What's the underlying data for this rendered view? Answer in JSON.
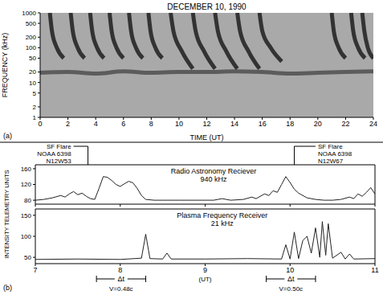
{
  "chart_data": [
    {
      "type": "line",
      "panel_label": "(a)",
      "title": "DECEMBER 10, 1990",
      "x_label": "TIME (UT)",
      "y_label": "FREQUENCY (kHz)",
      "log": "y",
      "xlim": [
        0,
        24
      ],
      "xticks": [
        0,
        2,
        4,
        6,
        8,
        10,
        12,
        14,
        16,
        18,
        20,
        22,
        24
      ],
      "ylim": [
        1,
        1000
      ],
      "yticks": [
        1,
        2,
        5,
        10,
        20,
        50,
        100,
        200,
        500,
        1000
      ],
      "series": [
        {
          "color": "#5c5c5c",
          "x": [
            0,
            2,
            4,
            6,
            8,
            10,
            12,
            14,
            16,
            18,
            20,
            22,
            24
          ],
          "values": [
            19,
            20,
            18,
            21,
            19,
            20,
            20,
            21,
            20,
            18,
            19,
            20,
            21
          ]
        },
        {
          "color": "#333333",
          "x": [
            0.7,
            0.85,
            1.2,
            1.7
          ],
          "values": [
            1000,
            300,
            100,
            50
          ]
        },
        {
          "color": "#333333",
          "x": [
            2.2,
            2.35,
            2.7,
            3.2
          ],
          "values": [
            1000,
            300,
            100,
            50
          ]
        },
        {
          "color": "#333333",
          "x": [
            3.6,
            3.75,
            4.1,
            4.6
          ],
          "values": [
            1000,
            300,
            100,
            50
          ]
        },
        {
          "color": "#333333",
          "x": [
            5.0,
            5.15,
            5.5,
            6.0
          ],
          "values": [
            1000,
            300,
            100,
            50
          ]
        },
        {
          "color": "#333333",
          "x": [
            6.4,
            6.55,
            6.9,
            7.4
          ],
          "values": [
            1000,
            300,
            100,
            50
          ]
        },
        {
          "color": "#333333",
          "x": [
            7.8,
            7.95,
            8.3,
            8.8
          ],
          "values": [
            1000,
            300,
            100,
            50
          ]
        },
        {
          "color": "#333333",
          "x": [
            9.4,
            9.6,
            10.2,
            11.0
          ],
          "values": [
            1000,
            300,
            80,
            25
          ]
        },
        {
          "color": "#333333",
          "x": [
            11.0,
            11.2,
            11.8,
            12.6
          ],
          "values": [
            1000,
            300,
            80,
            25
          ]
        },
        {
          "color": "#333333",
          "x": [
            12.6,
            12.8,
            13.4,
            14.2
          ],
          "values": [
            1000,
            300,
            80,
            25
          ]
        },
        {
          "color": "#333333",
          "x": [
            14.2,
            14.4,
            15.0,
            15.8
          ],
          "values": [
            1000,
            300,
            80,
            25
          ]
        },
        {
          "color": "#333333",
          "x": [
            15.8,
            16.0,
            16.6,
            17.4
          ],
          "values": [
            1000,
            300,
            100,
            40
          ]
        },
        {
          "color": "#333333",
          "x": [
            21.0,
            21.15,
            21.5,
            22.0
          ],
          "values": [
            1000,
            300,
            100,
            50
          ]
        },
        {
          "color": "#333333",
          "x": [
            22.4,
            22.55,
            22.9,
            23.4
          ],
          "values": [
            1000,
            300,
            100,
            50
          ]
        },
        {
          "color": "#333333",
          "x": [
            23.2,
            23.35,
            23.6,
            24.0
          ],
          "values": [
            1000,
            300,
            100,
            50
          ]
        }
      ]
    },
    {
      "type": "line",
      "panel_label": "(b)",
      "title": "Radio Astronomy Reciever",
      "subtitle": "940 kHz",
      "y_label": "INTENSITY TELEMETRY UNITS",
      "tick_labels": "y",
      "xlim": [
        7,
        11
      ],
      "xticks": [
        7,
        8,
        9,
        10,
        11
      ],
      "ylim": [
        70,
        170
      ],
      "yticks": [
        80,
        120,
        160
      ],
      "color": "#222222",
      "x": [
        7.0,
        7.1,
        7.2,
        7.3,
        7.35,
        7.4,
        7.45,
        7.5,
        7.55,
        7.6,
        7.65,
        7.7,
        7.75,
        7.8,
        7.85,
        7.9,
        7.95,
        8.0,
        8.05,
        8.1,
        8.15,
        8.2,
        8.25,
        8.3,
        8.4,
        8.5,
        8.7,
        8.9,
        9.1,
        9.2,
        9.3,
        9.45,
        9.55,
        9.6,
        9.7,
        9.75,
        9.8,
        9.85,
        9.9,
        9.95,
        10.0,
        10.05,
        10.1,
        10.2,
        10.3,
        10.4,
        10.5,
        10.6,
        10.7,
        10.75,
        10.8,
        10.85,
        10.9,
        10.95,
        11.0
      ],
      "values": [
        80,
        82,
        86,
        92,
        88,
        96,
        102,
        94,
        98,
        90,
        84,
        82,
        110,
        140,
        138,
        130,
        120,
        115,
        122,
        128,
        124,
        110,
        92,
        82,
        80,
        80,
        80,
        80,
        80,
        84,
        80,
        82,
        88,
        84,
        96,
        92,
        104,
        100,
        120,
        140,
        125,
        108,
        98,
        86,
        82,
        80,
        80,
        82,
        88,
        84,
        96,
        90,
        100,
        112,
        96
      ],
      "annotations": [
        {
          "lines": [
            "SF Flare",
            "NOAA 6398",
            "N12W53"
          ],
          "x": [
            7.45,
            7.62
          ]
        },
        {
          "lines": [
            "SF Flare",
            "NOAA 6398",
            "N12W67"
          ],
          "x": [
            10.05,
            10.3
          ]
        }
      ]
    },
    {
      "type": "line",
      "title": "Plasma Frequency Receiver",
      "subtitle": "21 kHz",
      "x_label": "(UT)",
      "xlim": [
        7,
        11
      ],
      "xticks": [
        7,
        8,
        9,
        10,
        11
      ],
      "ylim": [
        35,
        165
      ],
      "yticks": [
        50,
        100,
        150
      ],
      "color": "#222222",
      "x": [
        7.0,
        7.5,
        8.0,
        8.25,
        8.3,
        8.35,
        8.5,
        8.55,
        8.6,
        9.0,
        9.5,
        9.9,
        9.95,
        10.0,
        10.05,
        10.1,
        10.15,
        10.2,
        10.25,
        10.3,
        10.35,
        10.38,
        10.42,
        10.45,
        10.5,
        10.6,
        10.65,
        10.7,
        10.75,
        11.0
      ],
      "values": [
        45,
        46,
        45,
        48,
        105,
        47,
        46,
        60,
        46,
        46,
        47,
        46,
        80,
        46,
        110,
        47,
        90,
        100,
        60,
        120,
        50,
        135,
        55,
        130,
        48,
        62,
        46,
        58,
        46,
        47
      ],
      "brackets": [
        {
          "text": "Δt",
          "x": [
            7.72,
            8.3
          ],
          "label": "V=0.48c"
        },
        {
          "text": "Δt",
          "x": [
            9.72,
            10.3
          ],
          "label": "V=0.50c"
        }
      ]
    }
  ]
}
